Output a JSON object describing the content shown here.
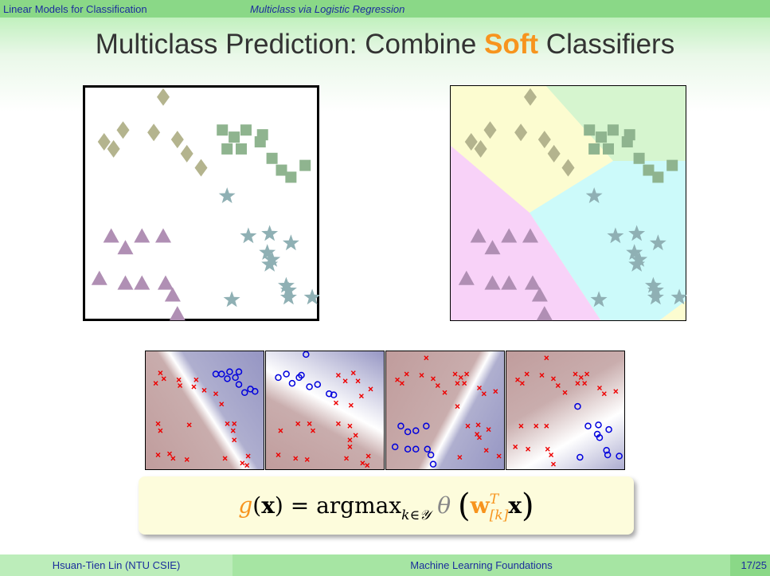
{
  "nav": {
    "section": "Linear Models for Classification",
    "subsection": "Multiclass via Logistic Regression"
  },
  "title": {
    "prefix": "Multiclass Prediction: Combine ",
    "highlight": "Soft",
    "suffix": " Classifiers"
  },
  "formula": {
    "g": "g",
    "x": "x",
    "eq": " = argmax",
    "sub": "k∈𝒴",
    "theta": "θ",
    "w": "w",
    "w_sup": "T",
    "w_sub": "[k]"
  },
  "footer": {
    "author": "Hsuan-Tien Lin  (NTU CSIE)",
    "course": "Machine Learning Foundations",
    "page": "17/25"
  },
  "colors": {
    "diamond": "#b4b48e",
    "square": "#8fb48f",
    "star": "#8fb0b4",
    "triangle": "#b08fb4",
    "region_diamond": "#fcfcd0",
    "region_square": "#d6f5cf",
    "region_star": "#ccfafa",
    "region_triangle": "#f8d2f8",
    "accent": "#f7941e"
  },
  "data": {
    "diamonds": [
      [
        34,
        5
      ],
      [
        9,
        24
      ],
      [
        17,
        19
      ],
      [
        30,
        20
      ],
      [
        40,
        23
      ],
      [
        13,
        27
      ],
      [
        44,
        29
      ],
      [
        50,
        35
      ]
    ],
    "squares": [
      [
        59,
        19
      ],
      [
        69,
        19
      ],
      [
        76,
        21
      ],
      [
        64,
        22
      ],
      [
        61,
        27
      ],
      [
        67,
        27
      ],
      [
        75,
        24
      ],
      [
        80,
        31
      ],
      [
        94,
        34
      ],
      [
        84,
        36
      ],
      [
        88,
        39
      ]
    ],
    "stars": [
      [
        61,
        47
      ],
      [
        70,
        64
      ],
      [
        79,
        63
      ],
      [
        88,
        67
      ],
      [
        78,
        71
      ],
      [
        80,
        74
      ],
      [
        79,
        76
      ],
      [
        86,
        85
      ],
      [
        87,
        87
      ],
      [
        63,
        91
      ],
      [
        87,
        90
      ],
      [
        97,
        90
      ]
    ],
    "triangles": [
      [
        12,
        64
      ],
      [
        25,
        64
      ],
      [
        34,
        64
      ],
      [
        18,
        69
      ],
      [
        7,
        82
      ],
      [
        18,
        84
      ],
      [
        25,
        84
      ],
      [
        35,
        84
      ],
      [
        38,
        89
      ],
      [
        40,
        97
      ]
    ]
  },
  "panels": [
    {
      "bg": "linear-gradient(57deg, #c09c9c 0%, #c9adad 45%, #ffffff 51%, #afafcf 58%, #9595c3 100%)",
      "o": [
        [
          60,
          19
        ],
        [
          65,
          19
        ],
        [
          72,
          17
        ],
        [
          80,
          17
        ],
        [
          70,
          23
        ],
        [
          77,
          22
        ],
        [
          80,
          28
        ],
        [
          90,
          32
        ],
        [
          94,
          34
        ],
        [
          85,
          35
        ]
      ],
      "x": [
        [
          12,
          18
        ],
        [
          15,
          23
        ],
        [
          8,
          27
        ],
        [
          28,
          24
        ],
        [
          29,
          29
        ],
        [
          43,
          24
        ],
        [
          41,
          30
        ],
        [
          50,
          33
        ],
        [
          60,
          36
        ],
        [
          65,
          45
        ],
        [
          10,
          62
        ],
        [
          12,
          68
        ],
        [
          37,
          63
        ],
        [
          20,
          88
        ],
        [
          10,
          89
        ],
        [
          23,
          92
        ],
        [
          35,
          93
        ],
        [
          70,
          62
        ],
        [
          76,
          62
        ],
        [
          75,
          68
        ],
        [
          76,
          76
        ],
        [
          88,
          90
        ],
        [
          83,
          96
        ],
        [
          68,
          92
        ],
        [
          87,
          98
        ]
      ]
    },
    {
      "bg": "linear-gradient(28deg, #c09c9c 0%, #c9adad 40%, #ffffff 55%, #9595c3 100%)",
      "o": [
        [
          34,
          2
        ],
        [
          10,
          22
        ],
        [
          17,
          19
        ],
        [
          28,
          22
        ],
        [
          30,
          20
        ],
        [
          22,
          27
        ],
        [
          37,
          30
        ],
        [
          44,
          28
        ],
        [
          54,
          36
        ],
        [
          58,
          37
        ]
      ],
      "x": [
        [
          62,
          20
        ],
        [
          75,
          18
        ],
        [
          68,
          25
        ],
        [
          79,
          25
        ],
        [
          90,
          32
        ],
        [
          82,
          38
        ],
        [
          60,
          44
        ],
        [
          73,
          46
        ],
        [
          37,
          62
        ],
        [
          27,
          62
        ],
        [
          12,
          68
        ],
        [
          40,
          68
        ],
        [
          62,
          62
        ],
        [
          72,
          64
        ],
        [
          77,
          72
        ],
        [
          72,
          76
        ],
        [
          72,
          82
        ],
        [
          88,
          90
        ],
        [
          83,
          96
        ],
        [
          10,
          89
        ],
        [
          25,
          92
        ],
        [
          35,
          93
        ],
        [
          69,
          92
        ],
        [
          87,
          98
        ]
      ]
    },
    {
      "bg": "linear-gradient(118deg, #c09c9c 0%, #c9adad 52%, #ffffff 58%, #afafcf 64%, #9595c3 100%)",
      "o": [
        [
          12,
          64
        ],
        [
          25,
          68
        ],
        [
          34,
          64
        ],
        [
          18,
          69
        ],
        [
          7,
          82
        ],
        [
          18,
          84
        ],
        [
          25,
          84
        ],
        [
          35,
          84
        ],
        [
          38,
          89
        ],
        [
          40,
          97
        ]
      ],
      "x": [
        [
          34,
          5
        ],
        [
          9,
          24
        ],
        [
          17,
          19
        ],
        [
          30,
          20
        ],
        [
          40,
          23
        ],
        [
          13,
          27
        ],
        [
          44,
          29
        ],
        [
          50,
          35
        ],
        [
          59,
          19
        ],
        [
          69,
          19
        ],
        [
          64,
          22
        ],
        [
          61,
          27
        ],
        [
          67,
          27
        ],
        [
          80,
          31
        ],
        [
          94,
          34
        ],
        [
          84,
          36
        ],
        [
          61,
          47
        ],
        [
          70,
          64
        ],
        [
          79,
          63
        ],
        [
          88,
          67
        ],
        [
          78,
          71
        ],
        [
          80,
          74
        ],
        [
          86,
          85
        ],
        [
          63,
          91
        ],
        [
          97,
          90
        ]
      ]
    },
    {
      "bg": "linear-gradient(150deg, #c09c9c 0%, #c9adad 40%, #ffffff 68%, #aaaacf 100%)",
      "o": [
        [
          61,
          47
        ],
        [
          70,
          64
        ],
        [
          79,
          63
        ],
        [
          88,
          67
        ],
        [
          78,
          71
        ],
        [
          80,
          74
        ],
        [
          86,
          85
        ],
        [
          87,
          89
        ],
        [
          63,
          91
        ],
        [
          97,
          90
        ]
      ],
      "x": [
        [
          34,
          5
        ],
        [
          9,
          24
        ],
        [
          17,
          19
        ],
        [
          30,
          20
        ],
        [
          40,
          23
        ],
        [
          13,
          27
        ],
        [
          44,
          29
        ],
        [
          50,
          35
        ],
        [
          59,
          19
        ],
        [
          69,
          19
        ],
        [
          64,
          22
        ],
        [
          61,
          27
        ],
        [
          67,
          27
        ],
        [
          80,
          31
        ],
        [
          94,
          34
        ],
        [
          84,
          36
        ],
        [
          12,
          64
        ],
        [
          25,
          64
        ],
        [
          34,
          64
        ],
        [
          7,
          82
        ],
        [
          18,
          84
        ],
        [
          35,
          84
        ],
        [
          38,
          89
        ],
        [
          40,
          97
        ]
      ]
    }
  ]
}
